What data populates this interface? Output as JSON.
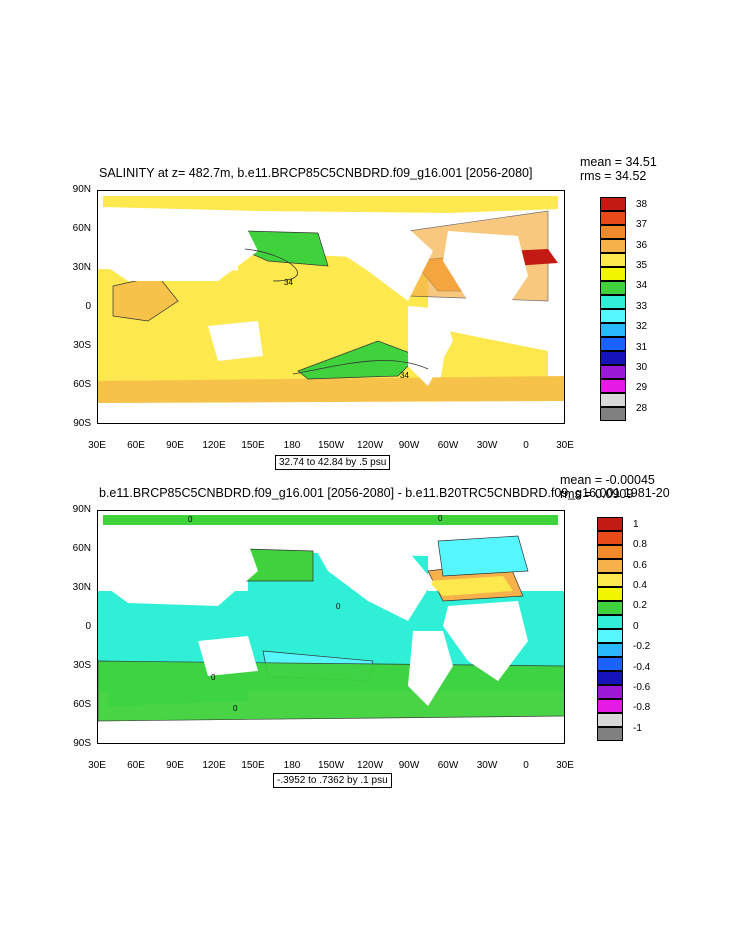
{
  "panels": [
    {
      "title": "SALINITY at z= 482.7m, b.e11.BRCP85C5CNBDRD.f09_g16.001 [2056-2080]",
      "mean_text": "mean = 34.51",
      "rms_text": "rms = 34.52",
      "info": "32.74 to 42.84 by .5 psu",
      "contour_label": "34",
      "colorbar": {
        "labels": [
          "38",
          "37",
          "36",
          "35",
          "34",
          "33",
          "32",
          "31",
          "30",
          "29",
          "28"
        ],
        "colors": [
          "#c41a14",
          "#e64a19",
          "#f08a2a",
          "#f6b14a",
          "#fde84e",
          "#f2f500",
          "#3fd23c",
          "#2ff0d6",
          "#56f6ff",
          "#2ab8ff",
          "#1a63ff",
          "#1414b8",
          "#9a1ad8",
          "#e61ae6",
          "#d8d8d8",
          "#808080"
        ]
      }
    },
    {
      "title": "b.e11.BRCP85C5CNBDRD.f09_g16.001 [2056-2080] - b.e11.B20TRC5CNBDRD.f09_g16.001 1981-20",
      "mean_text": "mean = -0.00045",
      "rms_text": "rms = 0.0909",
      "info": "-.3952 to .7362 by .1 psu",
      "contour_label": "0",
      "colorbar": {
        "labels": [
          "1",
          "0.8",
          "0.6",
          "0.4",
          "0.2",
          "0",
          "-0.2",
          "-0.4",
          "-0.6",
          "-0.8",
          "-1"
        ],
        "colors": [
          "#c41a14",
          "#e64a19",
          "#f08a2a",
          "#f6b14a",
          "#fde84e",
          "#f2f500",
          "#3fd23c",
          "#2ff0d6",
          "#56f6ff",
          "#2ab8ff",
          "#1a63ff",
          "#1414b8",
          "#9a1ad8",
          "#e61ae6",
          "#d8d8d8",
          "#808080"
        ]
      }
    }
  ],
  "y_ticks": [
    "90N",
    "60N",
    "30N",
    "0",
    "30S",
    "60S",
    "90S"
  ],
  "x_ticks": [
    "30E",
    "60E",
    "90E",
    "120E",
    "150E",
    "180",
    "150W",
    "120W",
    "90W",
    "60W",
    "30W",
    "0",
    "30E"
  ]
}
